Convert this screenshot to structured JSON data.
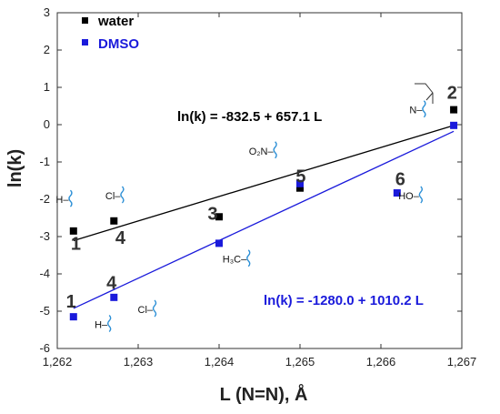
{
  "chart_data": {
    "type": "scatter",
    "xlabel": "L (N=N), Å",
    "ylabel": "ln(k)",
    "xlim": [
      1.262,
      1.267
    ],
    "ylim": [
      -6,
      3
    ],
    "x_ticks": [
      "1,262",
      "1,263",
      "1,264",
      "1,265",
      "1,266",
      "1,267"
    ],
    "y_ticks": [
      "-6",
      "-5",
      "-4",
      "-3",
      "-2",
      "-1",
      "0",
      "1",
      "2",
      "3"
    ],
    "legend_position": "top-left",
    "series": [
      {
        "name": "water",
        "color": "#000000",
        "points": [
          {
            "x": 1.2622,
            "y": -2.85
          },
          {
            "x": 1.2627,
            "y": -2.58
          },
          {
            "x": 1.264,
            "y": -2.47
          },
          {
            "x": 1.265,
            "y": -1.7
          },
          {
            "x": 1.2669,
            "y": 0.4
          }
        ],
        "fit": {
          "equation": "ln(k) = -832.5 + 657.1 L",
          "intercept": -832.5,
          "slope": 657.1,
          "x_range": [
            1.2622,
            1.2669
          ]
        }
      },
      {
        "name": "DMSO",
        "color": "#1a1adb",
        "points": [
          {
            "x": 1.2622,
            "y": -5.15
          },
          {
            "x": 1.2627,
            "y": -4.63
          },
          {
            "x": 1.264,
            "y": -3.18
          },
          {
            "x": 1.265,
            "y": -1.58
          },
          {
            "x": 1.2662,
            "y": -1.83
          },
          {
            "x": 1.2669,
            "y": -0.02
          }
        ],
        "fit": {
          "equation": "ln(k) = -1280.0 + 1010.2 L",
          "intercept": -1280.0,
          "slope": 1010.2,
          "x_range": [
            1.2622,
            1.2669
          ]
        }
      }
    ],
    "point_labels": [
      {
        "text": "1",
        "x": 1.26223,
        "y": -3.35
      },
      {
        "text": "4",
        "x": 1.26278,
        "y": -3.2
      },
      {
        "text": "3",
        "x": 1.26392,
        "y": -2.55
      },
      {
        "text": "5",
        "x": 1.26501,
        "y": -1.55
      },
      {
        "text": "2",
        "x": 1.26688,
        "y": 0.7
      },
      {
        "text": "6",
        "x": 1.26624,
        "y": -1.62
      },
      {
        "text": "1",
        "x": 1.26217,
        "y": -4.9
      },
      {
        "text": "4",
        "x": 1.26267,
        "y": -4.4
      }
    ],
    "substituent_labels": [
      {
        "text": "H–",
        "x": 1.26214,
        "y": -2.1
      },
      {
        "text": "Cl–",
        "x": 1.26278,
        "y": -2.0
      },
      {
        "text": "O₂N–",
        "x": 1.26467,
        "y": -0.8
      },
      {
        "text": "H₃C–",
        "x": 1.26434,
        "y": -3.7
      },
      {
        "text": "HO–",
        "x": 1.26647,
        "y": -2.0
      },
      {
        "text": "H–",
        "x": 1.26262,
        "y": -5.45
      },
      {
        "text": "Cl–",
        "x": 1.26318,
        "y": -5.05
      },
      {
        "text": "N–",
        "x": 1.26651,
        "y": 0.3
      }
    ]
  }
}
